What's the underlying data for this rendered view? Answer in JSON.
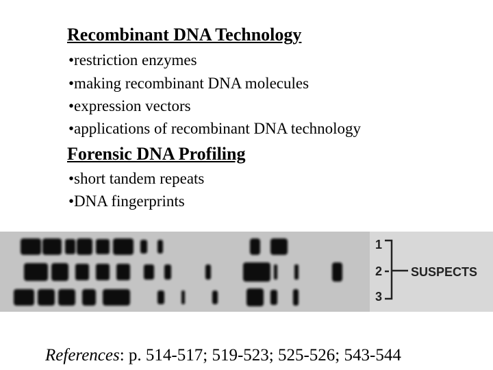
{
  "section1": {
    "heading": "Recombinant DNA Technology",
    "bullets": [
      "•restriction enzymes",
      "•making recombinant DNA molecules",
      "•expression vectors",
      "•applications of recombinant DNA technology"
    ]
  },
  "section2": {
    "heading": "Forensic DNA Profiling",
    "bullets": [
      "•short tandem repeats",
      "•DNA fingerprints"
    ]
  },
  "figure": {
    "lane_labels": [
      "1",
      "2",
      "3"
    ],
    "group_label": "SUSPECTS"
  },
  "references": {
    "label": "References",
    "text": ": p. 514-517; 519-523; 525-526; 543-544"
  }
}
